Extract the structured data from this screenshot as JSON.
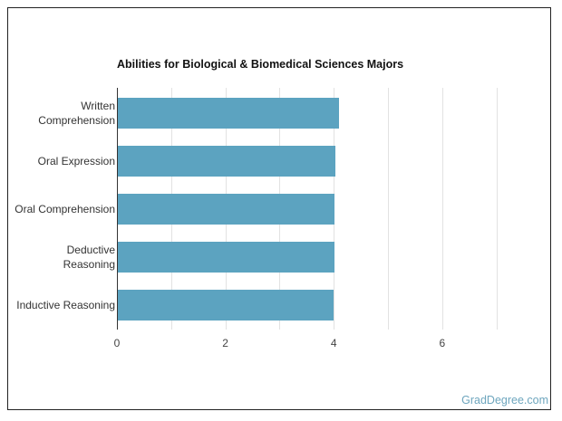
{
  "chart_data": {
    "type": "bar",
    "orientation": "horizontal",
    "title": "Abilities for Biological & Biomedical Sciences Majors",
    "categories": [
      "Written Comprehension",
      "Oral Expression",
      "Oral Comprehension",
      "Deductive Reasoning",
      "Inductive Reasoning"
    ],
    "category_labels": [
      [
        "Written",
        "Comprehension"
      ],
      [
        "Oral Expression"
      ],
      [
        "Oral Comprehension"
      ],
      [
        "Deductive",
        "Reasoning"
      ],
      [
        "Inductive Reasoning"
      ]
    ],
    "values": [
      4.1,
      4.03,
      4.01,
      4.01,
      4.0
    ],
    "xlabel": "",
    "ylabel": "",
    "xlim": [
      0,
      7
    ],
    "xticks": [
      "0",
      "2",
      "4",
      "6"
    ],
    "grid": true,
    "legend": null,
    "bar_color": "#5ca3c0"
  },
  "footer": {
    "brand": "GradDegree.com"
  }
}
